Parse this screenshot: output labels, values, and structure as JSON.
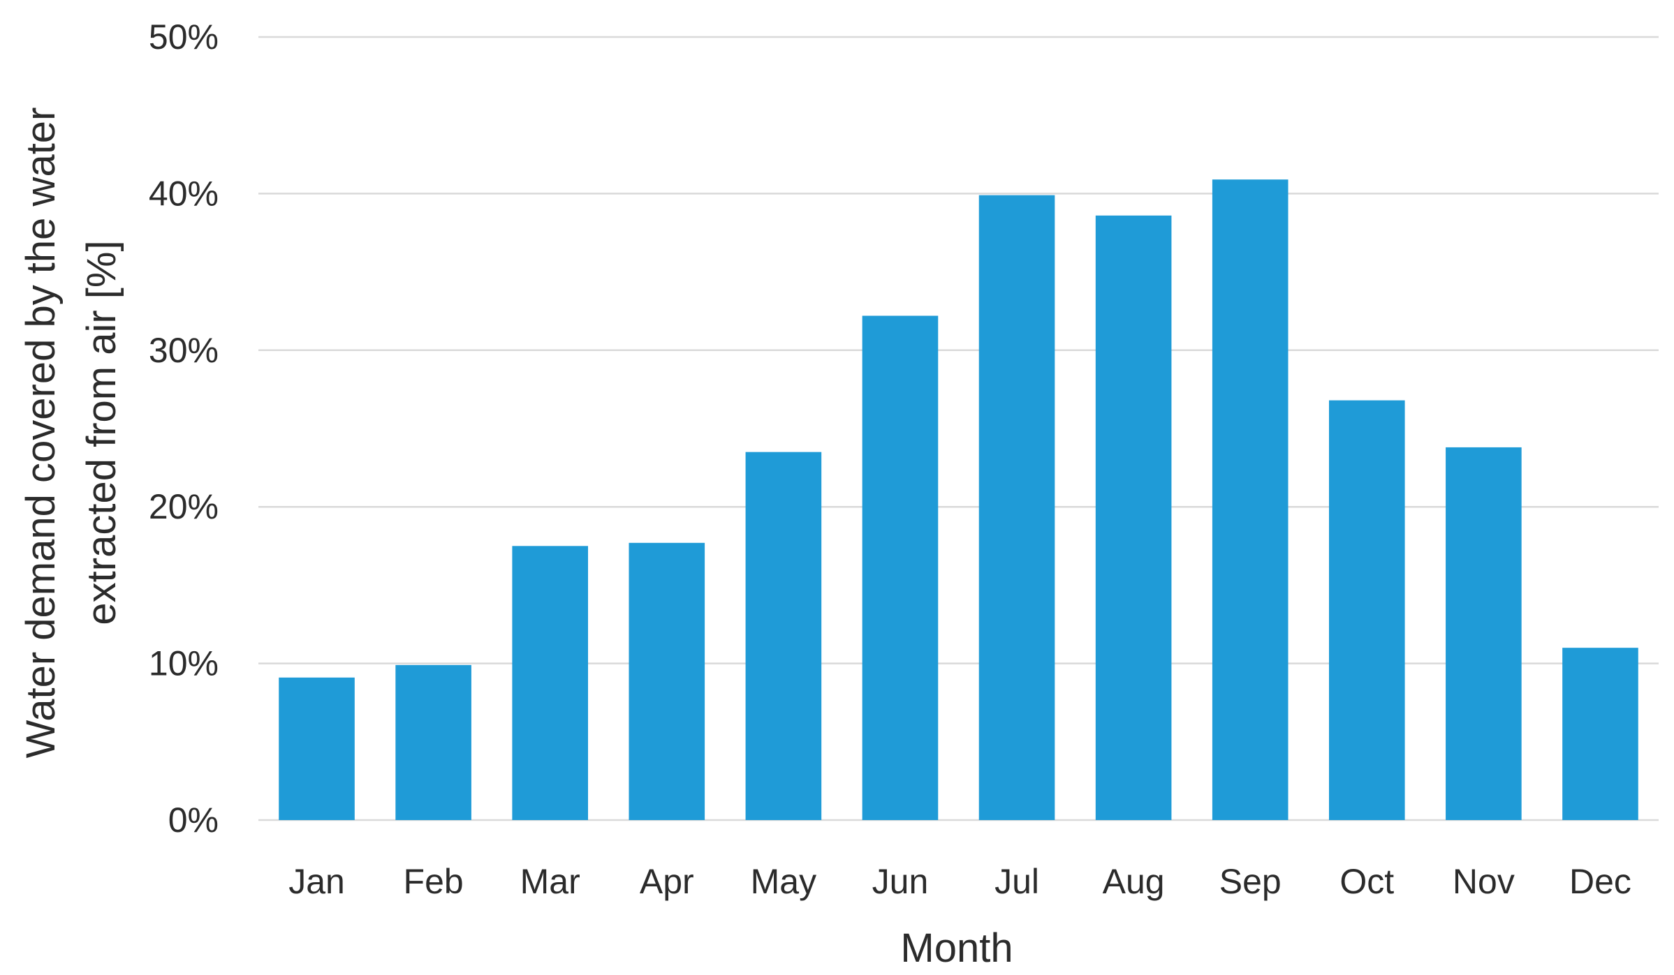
{
  "chart_data": {
    "type": "bar",
    "title": "",
    "xlabel": "Month",
    "ylabel": "Water demand covered by the water extracted from air [%]",
    "ylabel_lines": [
      "Water demand covered by the water",
      "extracted from air [%]"
    ],
    "categories": [
      "Jan",
      "Feb",
      "Mar",
      "Apr",
      "May",
      "Jun",
      "Jul",
      "Aug",
      "Sep",
      "Oct",
      "Nov",
      "Dec"
    ],
    "series": [
      {
        "values": [
          9.1,
          9.9,
          17.5,
          17.7,
          23.5,
          32.2,
          39.9,
          38.6,
          40.9,
          26.8,
          23.8,
          11.0
        ],
        "color": "#1f9bd7"
      }
    ],
    "ylim": [
      0,
      50
    ],
    "yticks": [
      0,
      10,
      20,
      30,
      40,
      50
    ],
    "ytick_labels": [
      "0%",
      "10%",
      "20%",
      "30%",
      "40%",
      "50%"
    ],
    "grid": true,
    "legend": "none"
  }
}
